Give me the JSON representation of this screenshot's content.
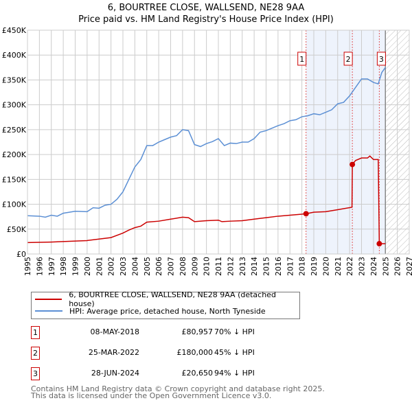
{
  "chart_data": {
    "type": "line",
    "title": "6, BOURTREE CLOSE, WALLSEND, NE28 9AA",
    "subtitle": "Price paid vs. HM Land Registry's House Price Index (HPI)",
    "xlim": [
      1995,
      2027
    ],
    "ylim": [
      0,
      450000
    ],
    "yticks": [
      {
        "v": 0,
        "label": "£0"
      },
      {
        "v": 50000,
        "label": "£50K"
      },
      {
        "v": 100000,
        "label": "£100K"
      },
      {
        "v": 150000,
        "label": "£150K"
      },
      {
        "v": 200000,
        "label": "£200K"
      },
      {
        "v": 250000,
        "label": "£250K"
      },
      {
        "v": 300000,
        "label": "£300K"
      },
      {
        "v": 350000,
        "label": "£350K"
      },
      {
        "v": 400000,
        "label": "£400K"
      },
      {
        "v": 450000,
        "label": "£450K"
      }
    ],
    "xticks": [
      "1995",
      "1996",
      "1997",
      "1998",
      "1999",
      "2000",
      "2001",
      "2002",
      "2003",
      "2004",
      "2005",
      "2006",
      "2007",
      "2008",
      "2009",
      "2010",
      "2011",
      "2012",
      "2013",
      "2014",
      "2015",
      "2016",
      "2017",
      "2018",
      "2019",
      "2020",
      "2021",
      "2022",
      "2023",
      "2024",
      "2025",
      "2026",
      "2027"
    ],
    "grid": true,
    "forecast_start": 2025,
    "series": [
      {
        "name": "6, BOURTREE CLOSE, WALLSEND, NE28 9AA (detached house)",
        "color": "#cc0000",
        "x": [
          1995,
          1997,
          1998,
          2000,
          2001,
          2002,
          2003,
          2003.5,
          2004,
          2004.5,
          2005,
          2006,
          2007,
          2008,
          2008.5,
          2009,
          2010,
          2011,
          2011.3,
          2012,
          2013,
          2014,
          2015,
          2016,
          2017,
          2018,
          2018.35,
          2019,
          2020,
          2021,
          2022.2,
          2022.23,
          2022.5,
          2023,
          2023.5,
          2023.7,
          2024,
          2024.4,
          2024.49,
          2025
        ],
        "y": [
          23000,
          24000,
          25000,
          27000,
          30000,
          33000,
          42000,
          48000,
          53000,
          56000,
          64000,
          66000,
          70000,
          74000,
          73000,
          65000,
          67000,
          68000,
          65000,
          66000,
          67000,
          70000,
          73000,
          76000,
          78000,
          80000,
          80957,
          84000,
          85000,
          89000,
          94000,
          180000,
          188000,
          193000,
          193000,
          197000,
          190000,
          190000,
          20650,
          20650
        ]
      },
      {
        "name": "HPI: Average price, detached house, North Tyneside",
        "color": "#5b8fd4",
        "x": [
          1995,
          1996,
          1996.5,
          1997,
          1997.5,
          1998,
          1999,
          2000,
          2000.5,
          2001,
          2001.5,
          2002,
          2002.5,
          2003,
          2003.5,
          2004,
          2004.5,
          2005,
          2005.5,
          2006,
          2006.5,
          2007,
          2007.5,
          2008,
          2008.5,
          2009,
          2009.5,
          2010,
          2010.5,
          2011,
          2011.5,
          2012,
          2012.5,
          2013,
          2013.5,
          2014,
          2014.5,
          2015,
          2015.5,
          2016,
          2016.5,
          2017,
          2017.5,
          2018,
          2018.5,
          2019,
          2019.5,
          2020,
          2020.5,
          2021,
          2021.5,
          2022,
          2022.5,
          2023,
          2023.5,
          2024,
          2024.4,
          2024.7,
          2025
        ],
        "y": [
          77000,
          76000,
          74000,
          78000,
          76000,
          82000,
          86000,
          85000,
          93000,
          92000,
          98000,
          100000,
          110000,
          125000,
          150000,
          175000,
          190000,
          218000,
          218000,
          225000,
          230000,
          235000,
          238000,
          250000,
          248000,
          220000,
          216000,
          222000,
          226000,
          232000,
          218000,
          223000,
          222000,
          225000,
          225000,
          232000,
          245000,
          248000,
          253000,
          258000,
          262000,
          268000,
          270000,
          276000,
          278000,
          282000,
          280000,
          285000,
          290000,
          302000,
          305000,
          318000,
          335000,
          352000,
          352000,
          345000,
          342000,
          365000,
          375000
        ]
      }
    ],
    "sales": [
      {
        "num": "1",
        "x": 2018.35,
        "y": 80957,
        "date": "08-MAY-2018",
        "price": "£80,957",
        "hpi": "70% ↓ HPI"
      },
      {
        "num": "2",
        "x": 2022.23,
        "y": 180000,
        "date": "25-MAR-2022",
        "price": "£180,000",
        "hpi": "45% ↓ HPI"
      },
      {
        "num": "3",
        "x": 2024.49,
        "y": 20650,
        "date": "28-JUN-2024",
        "price": "£20,650",
        "hpi": "94% ↓ HPI"
      }
    ]
  },
  "footer": {
    "line1": "Contains HM Land Registry data © Crown copyright and database right 2025.",
    "line2": "This data is licensed under the Open Government Licence v3.0."
  }
}
